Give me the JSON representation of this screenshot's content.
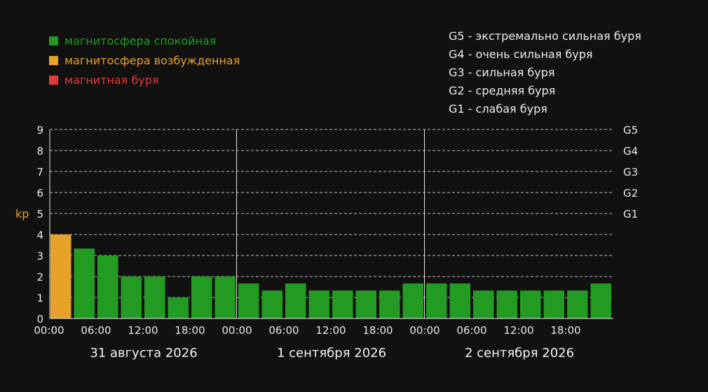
{
  "legend": {
    "items": [
      {
        "label": "магнитосфера спокойная",
        "color": "#239b23"
      },
      {
        "label": "магнитосфера возбужденная",
        "color": "#e8a22a"
      },
      {
        "label": "магнитная буря",
        "color": "#e03a3a"
      }
    ]
  },
  "storm_scale": [
    "G5 - экстремально сильная буря",
    "G4 - очень сильная буря",
    "G3 - сильная буря",
    "G2 - средняя буря",
    "G1 - слабая буря"
  ],
  "chart_data": {
    "type": "bar",
    "ylabel": "kp",
    "ylim": [
      0,
      9
    ],
    "yticks": [
      0,
      1,
      2,
      3,
      4,
      5,
      6,
      7,
      8,
      9
    ],
    "right_axis_labels": [
      {
        "value": 9,
        "label": "G5"
      },
      {
        "value": 8,
        "label": "G4"
      },
      {
        "value": 7,
        "label": "G3"
      },
      {
        "value": 6,
        "label": "G2"
      },
      {
        "value": 5,
        "label": "G1"
      }
    ],
    "x_tick_labels": [
      "00:00",
      "06:00",
      "12:00",
      "18:00",
      "00:00",
      "06:00",
      "12:00",
      "18:00",
      "00:00",
      "06:00",
      "12:00",
      "18:00"
    ],
    "days": [
      "31 августа 2026",
      "1 сентября 2026",
      "2 сентября 2026"
    ],
    "values": [
      4,
      3.33,
      3,
      2,
      2,
      1,
      2,
      2,
      1.67,
      1.33,
      1.67,
      1.33,
      1.33,
      1.33,
      1.33,
      1.67,
      1.67,
      1.67,
      1.33,
      1.33,
      1.33,
      1.33,
      1.33,
      1.67
    ],
    "colors": {
      "quiet": "#239b23",
      "excited": "#e8a22a",
      "storm": "#e03a3a"
    },
    "grid": "dashed"
  }
}
